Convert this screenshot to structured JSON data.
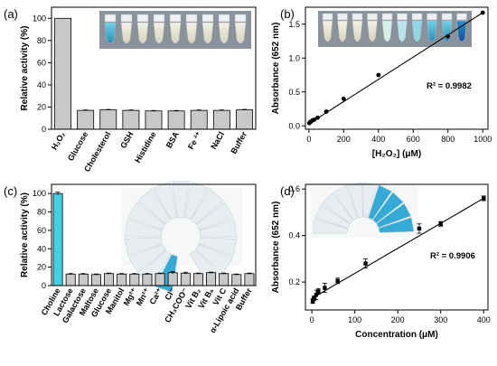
{
  "chart_data": [
    {
      "panel": "(a)",
      "type": "bar",
      "ylabel": "Relative activity (%)",
      "ylim": [
        0,
        110
      ],
      "yticks": [
        0,
        20,
        40,
        60,
        80,
        100
      ],
      "categories": [
        "H2O2",
        "Glucose",
        "Cholesterol",
        "GSH",
        "Histidine",
        "BSA",
        "Fe2+",
        "NaCl",
        "Buffer"
      ],
      "category_labels": [
        "H₂O₂",
        "Glucose",
        "Cholesterol",
        "GSH",
        "Histidine",
        "BSA",
        "Fe ²⁺",
        "NaCl",
        "Buffer"
      ],
      "values": [
        100,
        17,
        17.5,
        17,
        16.5,
        16.5,
        17,
        17,
        17.5
      ],
      "errors": [
        0,
        0.4,
        0.4,
        0.4,
        0.4,
        0.4,
        0.4,
        0.4,
        0.4
      ],
      "bar_color": "#c8c8c8",
      "inset": "photo-vials-a"
    },
    {
      "panel": "(b)",
      "type": "scatter",
      "xlabel": "[H₂O₂] (μM)",
      "ylabel": "Absorbance (652 nm)",
      "xlim": [
        -20,
        1030
      ],
      "ylim": [
        -0.05,
        1.75
      ],
      "xticks": [
        0,
        200,
        400,
        600,
        800,
        1000
      ],
      "yticks": [
        0.0,
        0.5,
        1.0,
        1.5
      ],
      "ytick_labels": [
        "0.0",
        "0.5",
        "1.0",
        "1.5"
      ],
      "x": [
        2,
        5,
        10,
        20,
        30,
        50,
        100,
        200,
        400,
        800,
        1000
      ],
      "y": [
        0.04,
        0.05,
        0.06,
        0.08,
        0.09,
        0.12,
        0.21,
        0.4,
        0.75,
        1.32,
        1.67
      ],
      "fit": {
        "x": [
          0,
          1000
        ],
        "y": [
          0.03,
          1.67
        ]
      },
      "annotation": "R² = 0.9982",
      "inset": "photo-vials-b"
    },
    {
      "panel": "(c)",
      "type": "bar",
      "ylabel": "Relative activity (%)",
      "ylim": [
        0,
        110
      ],
      "yticks": [
        0,
        20,
        40,
        60,
        80,
        100
      ],
      "categories": [
        "Choline",
        "Lactose",
        "Galactose",
        "Maltose",
        "Glucose",
        "Manitol",
        "Mg2+",
        "Mn2+",
        "Ca2+",
        "Cl-",
        "CH3COO-",
        "Vit B2",
        "Vit B6",
        "Vit C",
        "alpha-Lipoic acid",
        "Buffer"
      ],
      "category_labels": [
        "Choline",
        "Lactose",
        "Galactose",
        "Maltose",
        "Glucose",
        "Manitol",
        "Mg²⁺",
        "Mn²⁺",
        "Ca²⁺",
        "Cl⁻",
        "CH₃COO⁻",
        "Vit B₂",
        "Vit B₆",
        "Vit C",
        "α-Lipoic acid",
        "Buffer"
      ],
      "values": [
        100,
        12.5,
        12.5,
        12,
        13,
        12.5,
        12.5,
        12.5,
        13,
        14,
        13.5,
        13,
        14,
        13,
        12,
        13
      ],
      "errors": [
        1.5,
        0.6,
        0.6,
        0.6,
        0.6,
        0.6,
        0.6,
        0.6,
        0.6,
        1.2,
        1.0,
        0.6,
        0.6,
        0.6,
        0.6,
        0.6
      ],
      "highlight_color": "#3fd0e6",
      "bar_color": "#c8c8c8",
      "inset": "photo-vials-c"
    },
    {
      "panel": "(d)",
      "type": "scatter",
      "xlabel": "Concentration (μM)",
      "ylabel": "Absorbance (652 nm)",
      "xlim": [
        -15,
        410
      ],
      "ylim": [
        0.08,
        0.62
      ],
      "xticks": [
        0,
        100,
        200,
        300,
        400
      ],
      "yticks": [
        0.2,
        0.4,
        0.6
      ],
      "ytick_labels": [
        "0.2",
        "0.4",
        "0.6"
      ],
      "x": [
        2,
        5,
        10,
        15,
        30,
        60,
        125,
        250,
        300,
        400
      ],
      "y": [
        0.118,
        0.13,
        0.145,
        0.16,
        0.175,
        0.205,
        0.28,
        0.43,
        0.45,
        0.56
      ],
      "errors": [
        0.01,
        0.01,
        0.02,
        0.012,
        0.02,
        0.012,
        0.02,
        0.02,
        0.01,
        0.01
      ],
      "fit": {
        "x": [
          0,
          400
        ],
        "y": [
          0.13,
          0.56
        ]
      },
      "annotation": "R² = 0.9906",
      "inset": "photo-vials-d"
    }
  ]
}
